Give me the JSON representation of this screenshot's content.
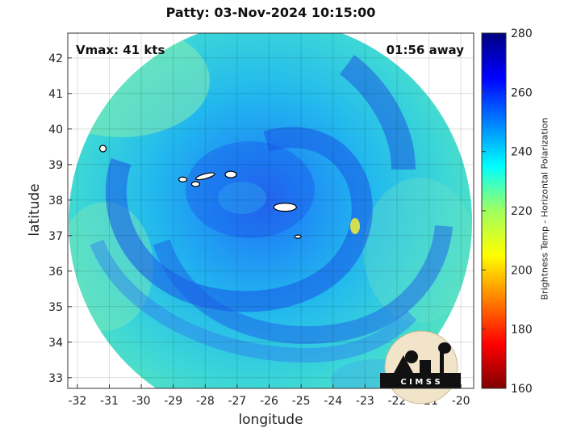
{
  "title": "Patty: 03-Nov-2024 10:15:00",
  "annotations": {
    "vmax": "Vmax: 41 kts",
    "time_away": "01:56 away"
  },
  "axes": {
    "xlabel": "longitude",
    "ylabel": "latitude",
    "xlim": [
      -32.3,
      -19.6
    ],
    "ylim": [
      32.7,
      42.7
    ],
    "xticks": [
      "-32",
      "-31",
      "-30",
      "-29",
      "-28",
      "-27",
      "-26",
      "-25",
      "-24",
      "-23",
      "-22",
      "-21",
      "-20"
    ],
    "yticks": [
      "33",
      "34",
      "35",
      "36",
      "37",
      "38",
      "39",
      "40",
      "41",
      "42"
    ]
  },
  "colorbar": {
    "label": "Brightness Temp - Horizontal Polarization",
    "range": [
      160,
      280
    ],
    "ticks": [
      "280",
      "260",
      "240",
      "220",
      "200",
      "180",
      "160"
    ],
    "colormap": "jet"
  },
  "map": {
    "storm_center": {
      "lon": -25.5,
      "lat": 37.9
    },
    "swath_center": {
      "lon": -26.0,
      "lat": 37.7
    },
    "grid": true,
    "islands": [
      {
        "name_hint": "Corvo/Flores",
        "lon": -31.2,
        "lat": 39.45
      },
      {
        "name_hint": "Faial",
        "lon": -28.7,
        "lat": 38.58
      },
      {
        "name_hint": "Pico",
        "lon": -28.3,
        "lat": 38.45
      },
      {
        "name_hint": "Sao Jorge",
        "lon": -28.0,
        "lat": 38.67
      },
      {
        "name_hint": "Terceira",
        "lon": -27.2,
        "lat": 38.72
      },
      {
        "name_hint": "Sao Miguel",
        "lon": -25.5,
        "lat": 37.8
      },
      {
        "name_hint": "Santa Maria",
        "lon": -25.1,
        "lat": 36.97
      }
    ]
  },
  "logo": {
    "text": "C I M S S"
  }
}
